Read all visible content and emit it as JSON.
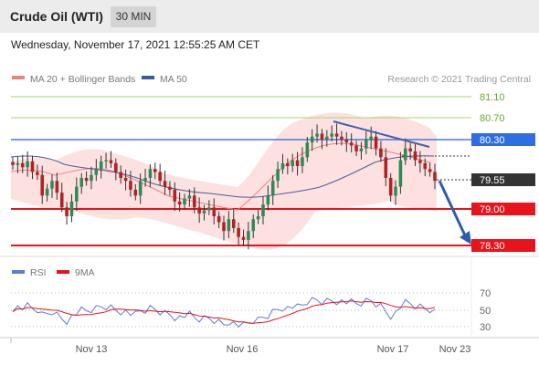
{
  "header": {
    "title": "Crude Oil (WTI)",
    "interval": "30 MIN"
  },
  "timestamp": "Wednesday, November 17, 2021 12:55:25 AM CET",
  "legend": {
    "ma20": "MA 20 + Bollinger Bands",
    "ma50": "MA 50",
    "copyright": "Research © 2021 Trading Central",
    "ma20_color": "#f08080",
    "ma50_color": "#3a5a9a"
  },
  "levels": {
    "r3": {
      "label": "81.10",
      "color": "#8cc63f"
    },
    "r2": {
      "label": "80.70",
      "color": "#8cc63f"
    },
    "r1": {
      "label": "80.30",
      "color": "#3a6fd8"
    },
    "last": {
      "label": "79.55",
      "color": "#333333"
    },
    "s1": {
      "label": "79.00",
      "color": "#e8141b"
    },
    "s2": {
      "label": "78.30",
      "color": "#e8141b"
    }
  },
  "rsi": {
    "legend_rsi": "RSI",
    "legend_ma": "9MA",
    "rsi_color": "#5b7bd5",
    "ma_color": "#e8141b",
    "ticks": [
      "70",
      "50",
      "30"
    ]
  },
  "xaxis": {
    "labels": [
      "Nov 13",
      "Nov 16",
      "Nov 17",
      "Nov 23"
    ]
  },
  "chart_data": {
    "type": "candlestick",
    "instrument": "Crude Oil (WTI)",
    "interval": "30 MIN",
    "ohlc_close_approx": [
      79.82,
      79.85,
      79.78,
      79.88,
      79.7,
      79.65,
      79.3,
      79.42,
      79.55,
      79.35,
      79.1,
      78.95,
      79.2,
      79.45,
      79.6,
      79.55,
      79.65,
      79.75,
      79.88,
      79.9,
      79.85,
      79.7,
      79.6,
      79.55,
      79.4,
      79.3,
      79.55,
      79.6,
      79.75,
      79.7,
      79.55,
      79.45,
      79.4,
      79.2,
      79.15,
      79.25,
      79.3,
      79.1,
      79.0,
      79.05,
      79.1,
      78.95,
      78.85,
      78.7,
      78.9,
      78.75,
      78.6,
      78.55,
      78.7,
      78.9,
      78.95,
      79.15,
      79.3,
      79.55,
      79.75,
      79.85,
      79.8,
      79.9,
      79.8,
      79.95,
      80.2,
      80.3,
      80.35,
      80.25,
      80.3,
      80.35,
      80.3,
      80.25,
      80.2,
      80.15,
      80.05,
      80.1,
      80.25,
      80.3,
      80.1,
      79.95,
      79.6,
      79.3,
      79.45,
      79.9,
      80.1,
      80.05,
      79.9,
      79.85,
      79.75,
      79.7,
      79.55
    ],
    "y_levels": [
      81.1,
      80.7,
      80.3,
      79.55,
      79.0,
      78.3
    ],
    "ylim": [
      78.1,
      81.3
    ],
    "trendline": {
      "from": 80.7,
      "to": 80.4
    },
    "projection": {
      "from": 79.55,
      "to": 78.3
    },
    "x_ticks": [
      "Nov 13",
      "Nov 16",
      "Nov 17",
      "Nov 23"
    ],
    "rsi_ylim": [
      20,
      80
    ],
    "rsi_ticks": [
      70,
      50,
      30
    ]
  }
}
